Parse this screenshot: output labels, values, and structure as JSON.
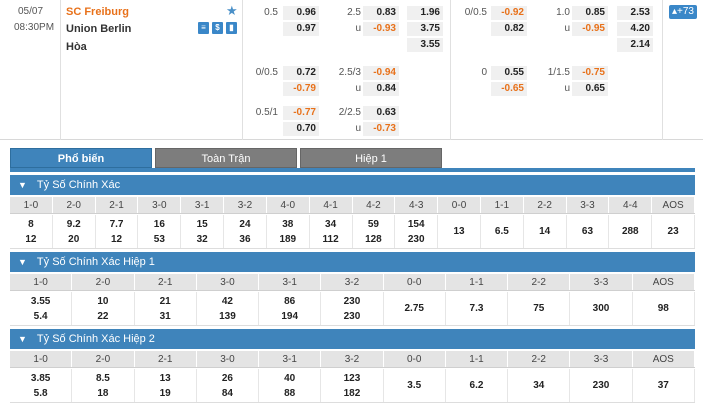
{
  "match": {
    "date": "05/07",
    "time": "08:30PM",
    "home": "SC Freiburg",
    "away": "Union Berlin",
    "draw": "Hòa",
    "more": "+73",
    "icons": [
      "list-icon",
      "dollar-icon",
      "chart-icon"
    ]
  },
  "ft_hdp": [
    {
      "line": "0.5",
      "home": "0.96",
      "away": "0.97"
    },
    {
      "line": "0/0.5",
      "home": "0.72",
      "away": "-0.79"
    },
    {
      "line": "0.5/1",
      "home": "-0.77",
      "away": "0.70"
    }
  ],
  "ft_ou": [
    {
      "line": "2.5",
      "over": "0.83",
      "u": "u",
      "under": "-0.93"
    },
    {
      "line": "2.5/3",
      "over": "-0.94",
      "u": "u",
      "under": "0.84"
    },
    {
      "line": "2/2.5",
      "over": "0.63",
      "u": "u",
      "under": "-0.73"
    }
  ],
  "ft_1x2": [
    "1.96",
    "3.75",
    "3.55"
  ],
  "h1_hdp": [
    {
      "line": "0/0.5",
      "home": "-0.92",
      "away": "0.82"
    },
    {
      "line": "0",
      "home": "0.55",
      "away": "-0.65"
    }
  ],
  "h1_ou": [
    {
      "line": "1.0",
      "over": "0.85",
      "u": "u",
      "under": "-0.95"
    },
    {
      "line": "1/1.5",
      "over": "-0.75",
      "u": "u",
      "under": "0.65"
    }
  ],
  "h1_1x2": [
    "2.53",
    "4.20",
    "2.14"
  ],
  "tabs": [
    "Phổ biến",
    "Toàn Trận",
    "Hiệp 1"
  ],
  "sections": [
    {
      "title": "Tỷ Số Chính Xác",
      "headers": [
        "1-0",
        "2-0",
        "2-1",
        "3-0",
        "3-1",
        "3-2",
        "4-0",
        "4-1",
        "4-2",
        "4-3",
        "0-0",
        "1-1",
        "2-2",
        "3-3",
        "4-4",
        "AOS"
      ],
      "cells": [
        [
          "8",
          "12"
        ],
        [
          "9.2",
          "20"
        ],
        [
          "7.7",
          "12"
        ],
        [
          "16",
          "53"
        ],
        [
          "15",
          "32"
        ],
        [
          "24",
          "36"
        ],
        [
          "38",
          "189"
        ],
        [
          "34",
          "112"
        ],
        [
          "59",
          "128"
        ],
        [
          "154",
          "230"
        ],
        [
          "13"
        ],
        [
          "6.5"
        ],
        [
          "14"
        ],
        [
          "63"
        ],
        [
          "288"
        ],
        [
          "23"
        ]
      ]
    },
    {
      "title": "Tỷ Số Chính Xác Hiệp 1",
      "headers": [
        "1-0",
        "2-0",
        "2-1",
        "3-0",
        "3-1",
        "3-2",
        "0-0",
        "1-1",
        "2-2",
        "3-3",
        "AOS"
      ],
      "cells": [
        [
          "3.55",
          "5.4"
        ],
        [
          "10",
          "22"
        ],
        [
          "21",
          "31"
        ],
        [
          "42",
          "139"
        ],
        [
          "86",
          "194"
        ],
        [
          "230",
          "230"
        ],
        [
          "2.75"
        ],
        [
          "7.3"
        ],
        [
          "75"
        ],
        [
          "300"
        ],
        [
          "98"
        ]
      ]
    },
    {
      "title": "Tỷ Số Chính Xác Hiệp 2",
      "headers": [
        "1-0",
        "2-0",
        "2-1",
        "3-0",
        "3-1",
        "3-2",
        "0-0",
        "1-1",
        "2-2",
        "3-3",
        "AOS"
      ],
      "cells": [
        [
          "3.85",
          "5.8"
        ],
        [
          "8.5",
          "18"
        ],
        [
          "13",
          "19"
        ],
        [
          "26",
          "84"
        ],
        [
          "40",
          "88"
        ],
        [
          "123",
          "182"
        ],
        [
          "3.5"
        ],
        [
          "6.2"
        ],
        [
          "34"
        ],
        [
          "230"
        ],
        [
          "37"
        ]
      ]
    }
  ],
  "colors": {
    "accent": "#3f84bb",
    "home_team": "#e8711a",
    "negative": "#e8711a",
    "tab_inactive": "#7d7d7d"
  }
}
